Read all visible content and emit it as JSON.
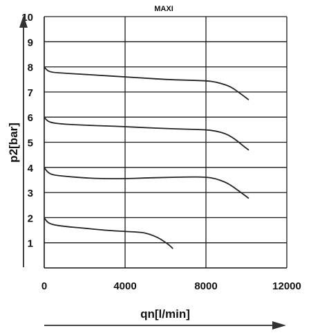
{
  "chart_data": {
    "type": "line",
    "title": "MAXI",
    "xlabel": "qn[l/min]",
    "ylabel": "p2[bar]",
    "xlim": [
      0,
      12000
    ],
    "ylim": [
      0,
      10
    ],
    "xticks": [
      0,
      4000,
      8000,
      12000
    ],
    "yticks": [
      1,
      2,
      3,
      4,
      5,
      6,
      7,
      8,
      9,
      10
    ],
    "grid": true,
    "line_color": "#222222",
    "series": [
      {
        "x": [
          0,
          150,
          400,
          1000,
          2000,
          3000,
          4000,
          5000,
          6000,
          7000,
          8000,
          8500,
          9000,
          9300,
          9600,
          9900,
          10100
        ],
        "y": [
          8.0,
          7.85,
          7.78,
          7.75,
          7.7,
          7.65,
          7.6,
          7.55,
          7.5,
          7.47,
          7.45,
          7.4,
          7.28,
          7.17,
          7.0,
          6.82,
          6.7
        ]
      },
      {
        "x": [
          0,
          150,
          400,
          1000,
          2000,
          3000,
          4000,
          5000,
          6000,
          7000,
          8000,
          8500,
          9000,
          9300,
          9600,
          9900,
          10100
        ],
        "y": [
          6.0,
          5.85,
          5.77,
          5.72,
          5.68,
          5.65,
          5.62,
          5.58,
          5.55,
          5.52,
          5.5,
          5.45,
          5.33,
          5.2,
          5.02,
          4.82,
          4.7
        ]
      },
      {
        "x": [
          0,
          150,
          400,
          1000,
          2000,
          3000,
          4000,
          5000,
          6000,
          7000,
          8000,
          8500,
          9000,
          9300,
          9600,
          9900,
          10100
        ],
        "y": [
          4.0,
          3.82,
          3.7,
          3.65,
          3.58,
          3.55,
          3.55,
          3.58,
          3.6,
          3.62,
          3.62,
          3.55,
          3.4,
          3.25,
          3.08,
          2.9,
          2.78
        ]
      },
      {
        "x": [
          0,
          150,
          400,
          1000,
          2000,
          3000,
          4000,
          4800,
          5200,
          5600,
          5900,
          6200,
          6350
        ],
        "y": [
          2.0,
          1.82,
          1.72,
          1.65,
          1.58,
          1.5,
          1.45,
          1.42,
          1.35,
          1.22,
          1.07,
          0.9,
          0.78
        ]
      }
    ]
  }
}
